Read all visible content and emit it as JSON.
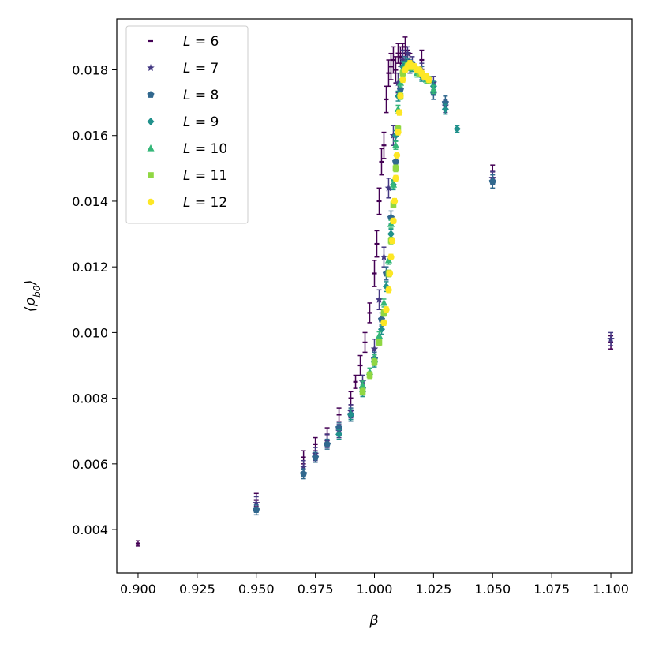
{
  "chart_data": {
    "type": "scatter",
    "title": "",
    "xlabel": "β",
    "ylabel": "⟨ρ_b0⟩",
    "xlim": [
      0.891,
      1.109
    ],
    "ylim": [
      0.00268,
      0.01955
    ],
    "grid": false,
    "legend_position": "top-left",
    "x_ticks": [
      0.9,
      0.925,
      0.95,
      0.975,
      1.0,
      1.025,
      1.05,
      1.075,
      1.1
    ],
    "x_tick_labels": [
      "0.900",
      "0.925",
      "0.950",
      "0.975",
      "1.000",
      "1.025",
      "1.050",
      "1.075",
      "1.100"
    ],
    "y_ticks": [
      0.004,
      0.006,
      0.008,
      0.01,
      0.012,
      0.014,
      0.016,
      0.018
    ],
    "y_tick_labels": [
      "0.004",
      "0.006",
      "0.008",
      "0.010",
      "0.012",
      "0.014",
      "0.016",
      "0.018"
    ],
    "series": [
      {
        "name": "L = 6",
        "label_var": "L",
        "label_val": "6",
        "marker": "dash",
        "color": "#440154",
        "x": [
          0.9,
          0.95,
          0.97,
          0.975,
          0.98,
          0.985,
          0.99,
          0.992,
          0.994,
          0.996,
          0.998,
          1.0,
          1.001,
          1.002,
          1.003,
          1.004,
          1.005,
          1.006,
          1.007,
          1.008,
          1.009,
          1.01,
          1.011,
          1.012,
          1.013,
          1.014,
          1.015,
          1.02,
          1.05,
          1.1
        ],
        "y": [
          0.00358,
          0.0049,
          0.0062,
          0.0066,
          0.0069,
          0.0075,
          0.008,
          0.0085,
          0.009,
          0.0097,
          0.0106,
          0.0118,
          0.0127,
          0.014,
          0.0152,
          0.0157,
          0.0171,
          0.0179,
          0.0181,
          0.0183,
          0.018,
          0.0185,
          0.0184,
          0.0185,
          0.0187,
          0.0183,
          0.0182,
          0.0183,
          0.0149,
          0.0097
        ],
        "err": [
          8e-05,
          0.0002,
          0.0002,
          0.0002,
          0.0002,
          0.0002,
          0.0002,
          0.0002,
          0.0003,
          0.0003,
          0.0003,
          0.0004,
          0.0004,
          0.0004,
          0.0004,
          0.0004,
          0.0004,
          0.0004,
          0.0004,
          0.0004,
          0.0004,
          0.0003,
          0.0003,
          0.0003,
          0.0003,
          0.0003,
          0.0003,
          0.0003,
          0.0002,
          0.0002
        ]
      },
      {
        "name": "L = 7",
        "label_var": "L",
        "label_val": "7",
        "marker": "star",
        "color": "#443983",
        "x": [
          0.95,
          0.97,
          0.975,
          0.98,
          0.985,
          0.99,
          0.995,
          1.0,
          1.002,
          1.004,
          1.006,
          1.008,
          1.01,
          1.012,
          1.014,
          1.016,
          1.02,
          1.025,
          1.03,
          1.05,
          1.1
        ],
        "y": [
          0.0048,
          0.0059,
          0.0063,
          0.0067,
          0.007,
          0.0076,
          0.0085,
          0.0095,
          0.011,
          0.0123,
          0.0144,
          0.016,
          0.0176,
          0.0183,
          0.0185,
          0.0182,
          0.018,
          0.0176,
          0.0169,
          0.0147,
          0.0098
        ],
        "err": [
          0.0002,
          0.0002,
          0.0002,
          0.0002,
          0.0002,
          0.0002,
          0.0002,
          0.0003,
          0.0003,
          0.0003,
          0.0003,
          0.0003,
          0.0003,
          0.0003,
          0.0002,
          0.0002,
          0.0002,
          0.0002,
          0.0002,
          0.0002,
          0.0002
        ]
      },
      {
        "name": "L = 8",
        "label_var": "L",
        "label_val": "8",
        "marker": "pentagon",
        "color": "#31688e",
        "x": [
          0.95,
          0.97,
          0.975,
          0.98,
          0.985,
          0.99,
          0.995,
          1.0,
          1.003,
          1.005,
          1.007,
          1.009,
          1.011,
          1.013,
          1.015,
          1.02,
          1.025,
          1.03,
          1.05
        ],
        "y": [
          0.0046,
          0.0057,
          0.0062,
          0.0066,
          0.0071,
          0.0075,
          0.0083,
          0.0092,
          0.0104,
          0.0118,
          0.0135,
          0.0152,
          0.0174,
          0.0182,
          0.0181,
          0.0179,
          0.0173,
          0.017,
          0.0146
        ],
        "err": [
          0.00015,
          0.00015,
          0.00015,
          0.00015,
          0.00015,
          0.0002,
          0.0002,
          0.0002,
          0.0002,
          0.0002,
          0.0002,
          0.0002,
          0.0002,
          0.0002,
          0.0002,
          0.0002,
          0.0002,
          0.0002,
          0.0002
        ]
      },
      {
        "name": "L = 9",
        "label_var": "L",
        "label_val": "9",
        "marker": "diamond",
        "color": "#21918c",
        "x": [
          0.985,
          0.99,
          0.995,
          1.0,
          1.003,
          1.005,
          1.007,
          1.008,
          1.009,
          1.01,
          1.012,
          1.014,
          1.016,
          1.02,
          1.025,
          1.03,
          1.035
        ],
        "y": [
          0.0069,
          0.0075,
          0.0082,
          0.0091,
          0.0101,
          0.0114,
          0.013,
          0.0145,
          0.016,
          0.0172,
          0.0181,
          0.0182,
          0.0181,
          0.0178,
          0.0175,
          0.0168,
          0.0162
        ],
        "err": [
          0.00015,
          0.00015,
          0.00015,
          0.00015,
          0.00015,
          0.00015,
          0.00015,
          0.00015,
          0.00015,
          0.00015,
          0.00015,
          0.00015,
          0.00015,
          0.00015,
          0.00015,
          0.00015,
          0.0001
        ]
      },
      {
        "name": "L = 10",
        "label_var": "L",
        "label_val": "10",
        "marker": "triangle",
        "color": "#35b779",
        "x": [
          0.995,
          0.998,
          1.0,
          1.002,
          1.004,
          1.006,
          1.007,
          1.008,
          1.009,
          1.01,
          1.011,
          1.013,
          1.015,
          1.018,
          1.022,
          1.025
        ],
        "y": [
          0.0084,
          0.0088,
          0.0092,
          0.0099,
          0.0109,
          0.0122,
          0.0133,
          0.0145,
          0.0157,
          0.0168,
          0.0176,
          0.0181,
          0.0181,
          0.0179,
          0.0177,
          0.0174
        ],
        "err": [
          0.00012,
          0.00012,
          0.00012,
          0.00012,
          0.00012,
          0.00012,
          0.00012,
          0.00012,
          0.00012,
          0.00012,
          0.00012,
          0.00012,
          0.00012,
          0.00012,
          0.00012,
          0.00012
        ]
      },
      {
        "name": "L = 11",
        "label_var": "L",
        "label_val": "11",
        "marker": "square",
        "color": "#90d743",
        "x": [
          0.995,
          0.998,
          1.0,
          1.002,
          1.004,
          1.006,
          1.007,
          1.008,
          1.009,
          1.01,
          1.011,
          1.012,
          1.014,
          1.016,
          1.019,
          1.023
        ],
        "y": [
          0.0082,
          0.0087,
          0.0091,
          0.0097,
          0.0106,
          0.0118,
          0.0128,
          0.0139,
          0.015,
          0.0162,
          0.0172,
          0.0179,
          0.0181,
          0.0181,
          0.0179,
          0.0177
        ],
        "err": [
          0.0001,
          0.0001,
          0.0001,
          0.0001,
          0.0001,
          0.0001,
          0.0001,
          0.0001,
          0.0001,
          0.0001,
          0.0001,
          0.0001,
          0.0001,
          0.0001,
          0.0001,
          0.0001
        ]
      },
      {
        "name": "L = 12",
        "label_var": "L",
        "label_val": "12",
        "marker": "circle",
        "color": "#fde725",
        "x": [
          1.004,
          1.005,
          1.006,
          1.0065,
          1.007,
          1.0075,
          1.008,
          1.0085,
          1.009,
          1.0095,
          1.01,
          1.0105,
          1.011,
          1.012,
          1.013,
          1.014,
          1.015,
          1.016,
          1.017,
          1.018,
          1.019,
          1.02,
          1.021,
          1.022,
          1.023
        ],
        "y": [
          0.0103,
          0.0107,
          0.0113,
          0.0118,
          0.0123,
          0.0128,
          0.0134,
          0.014,
          0.0147,
          0.0154,
          0.0161,
          0.0167,
          0.0172,
          0.0177,
          0.018,
          0.0181,
          0.0182,
          0.0181,
          0.0181,
          0.018,
          0.018,
          0.0179,
          0.0178,
          0.0178,
          0.0177
        ],
        "err": [
          8e-05,
          8e-05,
          8e-05,
          8e-05,
          8e-05,
          8e-05,
          8e-05,
          8e-05,
          8e-05,
          8e-05,
          8e-05,
          8e-05,
          8e-05,
          8e-05,
          8e-05,
          8e-05,
          8e-05,
          8e-05,
          8e-05,
          8e-05,
          8e-05,
          8e-05,
          8e-05,
          8e-05,
          8e-05
        ]
      }
    ]
  }
}
